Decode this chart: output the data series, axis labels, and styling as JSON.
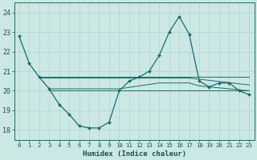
{
  "xlabel": "Humidex (Indice chaleur)",
  "background_color": "#cce8e4",
  "grid_color": "#b0d8d4",
  "line_color": "#1a6b6b",
  "xlim": [
    -0.5,
    23.5
  ],
  "ylim": [
    17.5,
    24.5
  ],
  "yticks": [
    18,
    19,
    20,
    21,
    22,
    23,
    24
  ],
  "xticks": [
    0,
    1,
    2,
    3,
    4,
    5,
    6,
    7,
    8,
    9,
    10,
    11,
    12,
    13,
    14,
    15,
    16,
    17,
    18,
    19,
    20,
    21,
    22,
    23
  ],
  "series1_x": [
    0,
    1,
    2,
    3,
    4,
    5,
    6,
    7,
    8,
    9,
    10,
    11,
    12,
    13,
    14,
    15,
    16,
    17,
    18,
    19,
    20,
    21,
    22,
    23
  ],
  "series1_y": [
    22.8,
    21.4,
    20.7,
    20.1,
    19.3,
    18.8,
    18.2,
    18.1,
    18.1,
    18.4,
    20.0,
    20.5,
    20.7,
    21.0,
    21.8,
    23.0,
    23.8,
    22.9,
    20.5,
    20.2,
    20.4,
    20.4,
    20.0,
    19.8
  ],
  "series2_x": [
    2,
    23
  ],
  "series2_y": [
    20.7,
    20.7
  ],
  "series3_x": [
    3,
    23
  ],
  "series3_y": [
    20.0,
    20.0
  ],
  "series4_x": [
    2,
    11,
    14,
    17,
    23
  ],
  "series4_y": [
    20.65,
    20.65,
    20.65,
    20.65,
    20.3
  ],
  "series5_x": [
    3,
    10,
    14,
    17,
    18,
    23
  ],
  "series5_y": [
    20.1,
    20.1,
    20.4,
    20.4,
    20.25,
    20.0
  ]
}
